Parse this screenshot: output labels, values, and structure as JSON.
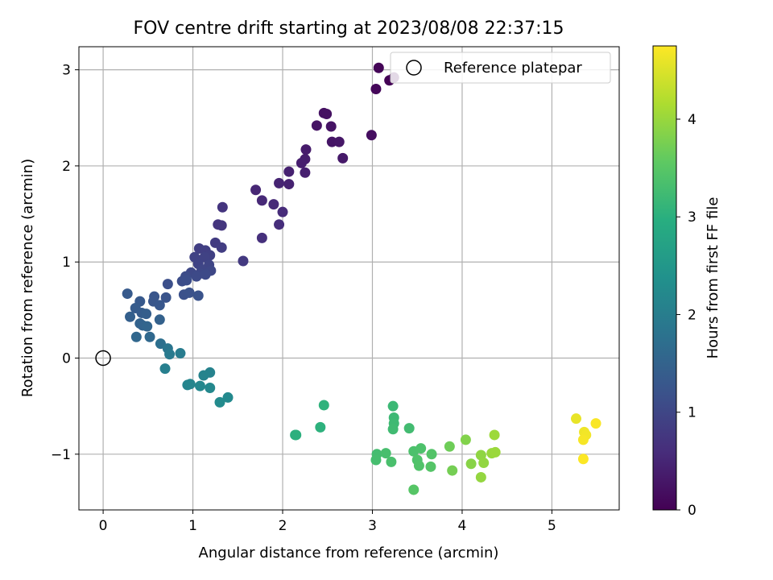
{
  "chart_data": {
    "type": "scatter",
    "title": "FOV centre drift starting at 2023/08/08 22:37:15",
    "xlabel": "Angular distance from reference (arcmin)",
    "ylabel": "Rotation from reference (arcmin)",
    "xlim": [
      -0.27,
      5.75
    ],
    "ylim": [
      -1.58,
      3.24
    ],
    "xticks": [
      0,
      1,
      2,
      3,
      4,
      5
    ],
    "yticks": [
      -1,
      0,
      1,
      2,
      3
    ],
    "grid": true,
    "legend": {
      "placement": "top-right",
      "entries": [
        "Reference platepar"
      ]
    },
    "reference_point": {
      "label": "Reference platepar",
      "x": 0,
      "y": 0,
      "marker": "open-circle"
    },
    "colorbar": {
      "label": "Hours from first FF file",
      "colormap": "viridis",
      "range": [
        0,
        4.75
      ],
      "ticks": [
        0,
        1,
        2,
        3,
        4
      ]
    },
    "series": [
      {
        "colored_by": "colorbar",
        "points": [
          {
            "x": 3.07,
            "y": 3.02,
            "c": 0.05
          },
          {
            "x": 3.04,
            "y": 2.8,
            "c": 0.08
          },
          {
            "x": 3.19,
            "y": 2.89,
            "c": 0.02
          },
          {
            "x": 3.24,
            "y": 2.92,
            "c": 0.04
          },
          {
            "x": 2.99,
            "y": 2.32,
            "c": 0.18
          },
          {
            "x": 2.46,
            "y": 2.55,
            "c": 0.22
          },
          {
            "x": 2.49,
            "y": 2.54,
            "c": 0.22
          },
          {
            "x": 2.38,
            "y": 2.42,
            "c": 0.25
          },
          {
            "x": 2.54,
            "y": 2.41,
            "c": 0.25
          },
          {
            "x": 2.55,
            "y": 2.25,
            "c": 0.28
          },
          {
            "x": 2.63,
            "y": 2.25,
            "c": 0.3
          },
          {
            "x": 2.67,
            "y": 2.08,
            "c": 0.33
          },
          {
            "x": 2.26,
            "y": 2.17,
            "c": 0.36
          },
          {
            "x": 2.25,
            "y": 2.07,
            "c": 0.38
          },
          {
            "x": 2.21,
            "y": 2.03,
            "c": 0.4
          },
          {
            "x": 2.25,
            "y": 1.93,
            "c": 0.42
          },
          {
            "x": 2.07,
            "y": 1.94,
            "c": 0.44
          },
          {
            "x": 2.07,
            "y": 1.81,
            "c": 0.46
          },
          {
            "x": 1.96,
            "y": 1.82,
            "c": 0.48
          },
          {
            "x": 1.7,
            "y": 1.75,
            "c": 0.52
          },
          {
            "x": 1.77,
            "y": 1.64,
            "c": 0.55
          },
          {
            "x": 1.9,
            "y": 1.6,
            "c": 0.57
          },
          {
            "x": 2.0,
            "y": 1.52,
            "c": 0.6
          },
          {
            "x": 1.96,
            "y": 1.39,
            "c": 0.62
          },
          {
            "x": 1.77,
            "y": 1.25,
            "c": 0.66
          },
          {
            "x": 1.33,
            "y": 1.57,
            "c": 0.72
          },
          {
            "x": 1.28,
            "y": 1.39,
            "c": 0.74
          },
          {
            "x": 1.32,
            "y": 1.38,
            "c": 0.75
          },
          {
            "x": 1.56,
            "y": 1.01,
            "c": 0.8
          },
          {
            "x": 1.25,
            "y": 1.2,
            "c": 0.84
          },
          {
            "x": 1.32,
            "y": 1.15,
            "c": 0.86
          },
          {
            "x": 1.07,
            "y": 1.14,
            "c": 0.88
          },
          {
            "x": 1.14,
            "y": 1.12,
            "c": 0.9
          },
          {
            "x": 1.19,
            "y": 1.07,
            "c": 0.92
          },
          {
            "x": 1.13,
            "y": 1.05,
            "c": 0.94
          },
          {
            "x": 1.02,
            "y": 1.05,
            "c": 0.95
          },
          {
            "x": 1.06,
            "y": 0.98,
            "c": 0.97
          },
          {
            "x": 1.18,
            "y": 0.97,
            "c": 0.99
          },
          {
            "x": 1.1,
            "y": 0.92,
            "c": 1.01
          },
          {
            "x": 1.2,
            "y": 0.91,
            "c": 1.02
          },
          {
            "x": 1.08,
            "y": 0.88,
            "c": 1.04
          },
          {
            "x": 0.98,
            "y": 0.89,
            "c": 1.05
          },
          {
            "x": 1.04,
            "y": 0.85,
            "c": 1.07
          },
          {
            "x": 1.14,
            "y": 0.87,
            "c": 1.08
          },
          {
            "x": 0.92,
            "y": 0.85,
            "c": 1.1
          },
          {
            "x": 0.88,
            "y": 0.8,
            "c": 1.12
          },
          {
            "x": 0.93,
            "y": 0.81,
            "c": 1.14
          },
          {
            "x": 0.72,
            "y": 0.77,
            "c": 1.16
          },
          {
            "x": 0.9,
            "y": 0.66,
            "c": 1.18
          },
          {
            "x": 0.96,
            "y": 0.68,
            "c": 1.2
          },
          {
            "x": 1.06,
            "y": 0.65,
            "c": 1.22
          },
          {
            "x": 0.7,
            "y": 0.63,
            "c": 1.24
          },
          {
            "x": 0.57,
            "y": 0.64,
            "c": 1.26
          },
          {
            "x": 0.56,
            "y": 0.59,
            "c": 1.28
          },
          {
            "x": 0.63,
            "y": 0.55,
            "c": 1.3
          },
          {
            "x": 0.41,
            "y": 0.59,
            "c": 1.33
          },
          {
            "x": 0.27,
            "y": 0.67,
            "c": 1.35
          },
          {
            "x": 0.36,
            "y": 0.52,
            "c": 1.38
          },
          {
            "x": 0.43,
            "y": 0.47,
            "c": 1.4
          },
          {
            "x": 0.48,
            "y": 0.46,
            "c": 1.42
          },
          {
            "x": 0.3,
            "y": 0.43,
            "c": 1.45
          },
          {
            "x": 0.63,
            "y": 0.4,
            "c": 1.48
          },
          {
            "x": 0.41,
            "y": 0.36,
            "c": 1.5
          },
          {
            "x": 0.44,
            "y": 0.34,
            "c": 1.52
          },
          {
            "x": 0.49,
            "y": 0.33,
            "c": 1.55
          },
          {
            "x": 0.37,
            "y": 0.22,
            "c": 1.6
          },
          {
            "x": 0.52,
            "y": 0.22,
            "c": 1.62
          },
          {
            "x": 0.64,
            "y": 0.15,
            "c": 1.75
          },
          {
            "x": 0.72,
            "y": 0.1,
            "c": 1.85
          },
          {
            "x": 0.74,
            "y": 0.04,
            "c": 1.95
          },
          {
            "x": 0.86,
            "y": 0.05,
            "c": 2.0
          },
          {
            "x": 0.69,
            "y": -0.11,
            "c": 2.05
          },
          {
            "x": 1.19,
            "y": -0.15,
            "c": 2.1
          },
          {
            "x": 1.12,
            "y": -0.18,
            "c": 2.12
          },
          {
            "x": 0.94,
            "y": -0.28,
            "c": 2.15
          },
          {
            "x": 0.97,
            "y": -0.27,
            "c": 2.17
          },
          {
            "x": 1.08,
            "y": -0.29,
            "c": 2.2
          },
          {
            "x": 1.19,
            "y": -0.31,
            "c": 2.22
          },
          {
            "x": 1.39,
            "y": -0.41,
            "c": 2.25
          },
          {
            "x": 1.3,
            "y": -0.46,
            "c": 2.27
          },
          {
            "x": 2.14,
            "y": -0.8,
            "c": 3.0
          },
          {
            "x": 2.15,
            "y": -0.8,
            "c": 3.02
          },
          {
            "x": 2.42,
            "y": -0.72,
            "c": 3.05
          },
          {
            "x": 2.46,
            "y": -0.49,
            "c": 3.07
          },
          {
            "x": 3.23,
            "y": -0.5,
            "c": 3.2
          },
          {
            "x": 3.24,
            "y": -0.62,
            "c": 3.22
          },
          {
            "x": 3.24,
            "y": -0.68,
            "c": 3.24
          },
          {
            "x": 3.23,
            "y": -0.74,
            "c": 3.26
          },
          {
            "x": 3.41,
            "y": -0.73,
            "c": 3.28
          },
          {
            "x": 3.05,
            "y": -1.0,
            "c": 3.3
          },
          {
            "x": 3.04,
            "y": -1.06,
            "c": 3.32
          },
          {
            "x": 3.15,
            "y": -0.99,
            "c": 3.34
          },
          {
            "x": 3.21,
            "y": -1.08,
            "c": 3.36
          },
          {
            "x": 3.46,
            "y": -0.97,
            "c": 3.38
          },
          {
            "x": 3.54,
            "y": -0.94,
            "c": 3.4
          },
          {
            "x": 3.5,
            "y": -1.06,
            "c": 3.42
          },
          {
            "x": 3.52,
            "y": -1.12,
            "c": 3.44
          },
          {
            "x": 3.66,
            "y": -1.0,
            "c": 3.46
          },
          {
            "x": 3.65,
            "y": -1.13,
            "c": 3.48
          },
          {
            "x": 3.46,
            "y": -1.37,
            "c": 3.5
          },
          {
            "x": 3.86,
            "y": -0.92,
            "c": 3.7
          },
          {
            "x": 3.89,
            "y": -1.17,
            "c": 3.75
          },
          {
            "x": 4.04,
            "y": -0.85,
            "c": 3.85
          },
          {
            "x": 4.1,
            "y": -1.1,
            "c": 3.9
          },
          {
            "x": 4.21,
            "y": -1.01,
            "c": 3.95
          },
          {
            "x": 4.24,
            "y": -1.09,
            "c": 3.97
          },
          {
            "x": 4.21,
            "y": -1.24,
            "c": 3.99
          },
          {
            "x": 4.33,
            "y": -0.99,
            "c": 4.02
          },
          {
            "x": 4.37,
            "y": -0.98,
            "c": 4.04
          },
          {
            "x": 4.36,
            "y": -0.8,
            "c": 4.06
          },
          {
            "x": 5.27,
            "y": -0.63,
            "c": 4.6
          },
          {
            "x": 5.36,
            "y": -0.77,
            "c": 4.65
          },
          {
            "x": 5.38,
            "y": -0.8,
            "c": 4.67
          },
          {
            "x": 5.35,
            "y": -0.85,
            "c": 4.7
          },
          {
            "x": 5.49,
            "y": -0.68,
            "c": 4.72
          },
          {
            "x": 5.35,
            "y": -1.05,
            "c": 4.74
          }
        ]
      }
    ]
  }
}
